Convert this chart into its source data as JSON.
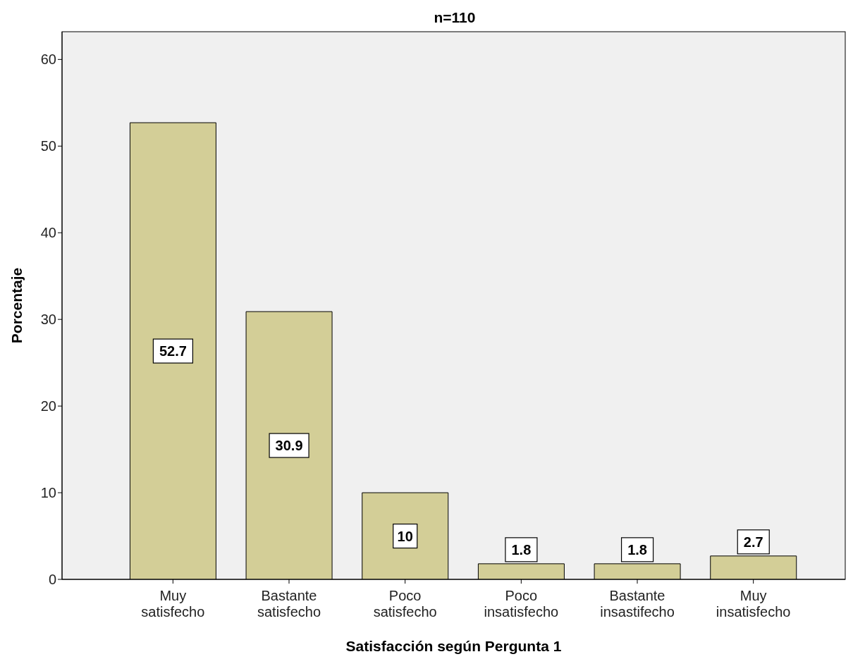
{
  "chart_data": {
    "type": "bar",
    "title": "n=110",
    "xlabel": "Satisfacción según Pergunta 1",
    "ylabel": "Porcentaje",
    "categories": [
      "Muy satisfecho",
      "Bastante satisfecho",
      "Poco satisfecho",
      "Poco insatisfecho",
      "Bastante insastifecho",
      "Muy insatisfecho"
    ],
    "values": [
      52.7,
      30.9,
      10,
      1.8,
      1.8,
      2.7
    ],
    "color": "#d3ce97",
    "ylim": [
      0,
      63.2
    ],
    "yticks": [
      0,
      10,
      20,
      30,
      40,
      50,
      60
    ],
    "grid": false,
    "data_labels": true
  }
}
